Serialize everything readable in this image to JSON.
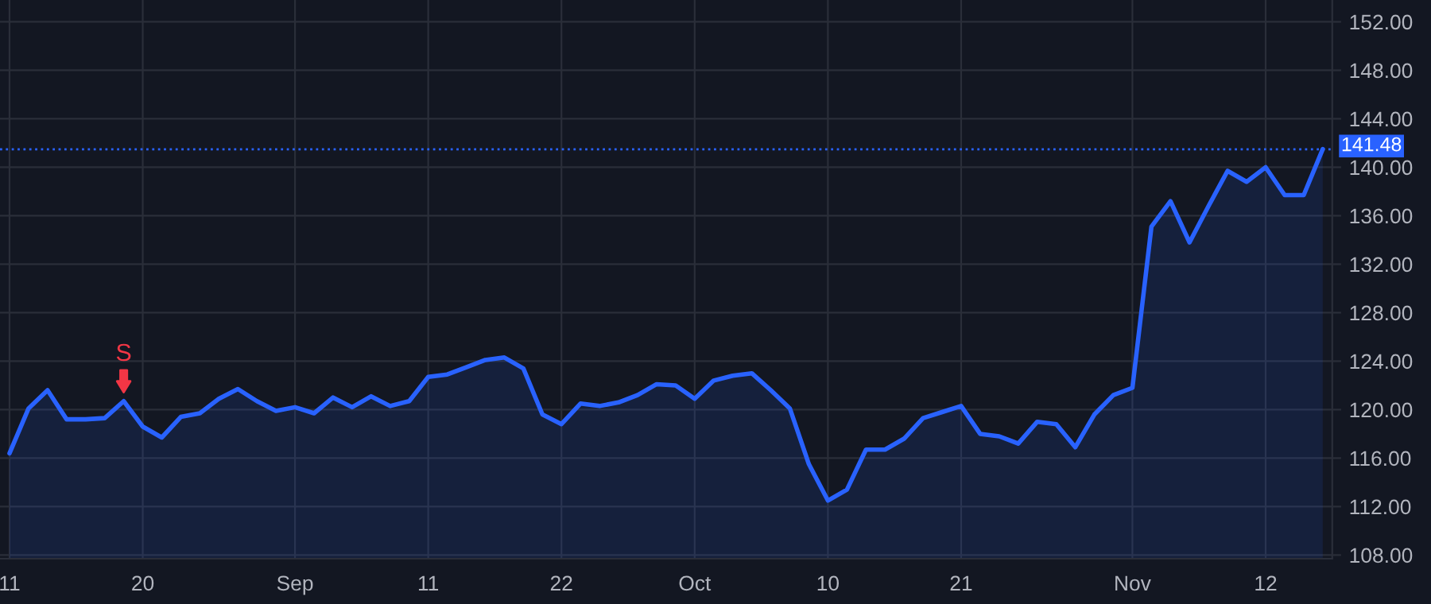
{
  "chart_data": {
    "type": "area",
    "categories": [
      "11",
      null,
      null,
      null,
      null,
      null,
      null,
      "20",
      null,
      null,
      null,
      null,
      null,
      null,
      null,
      "Sep",
      null,
      null,
      null,
      null,
      null,
      null,
      "11",
      null,
      null,
      null,
      null,
      null,
      null,
      "22",
      null,
      null,
      null,
      null,
      null,
      null,
      "Oct",
      null,
      null,
      null,
      null,
      null,
      null,
      "10",
      null,
      null,
      null,
      null,
      null,
      null,
      "21",
      null,
      null,
      null,
      null,
      null,
      null,
      null,
      null,
      "Nov",
      null,
      null,
      null,
      null,
      null,
      null,
      "12",
      null,
      null,
      null
    ],
    "series": [
      {
        "color": "#2962ff",
        "values": [
          116.4,
          120.1,
          121.6,
          119.2,
          119.2,
          119.3,
          120.7,
          118.6,
          117.7,
          119.4,
          119.7,
          120.9,
          121.7,
          120.7,
          119.9,
          120.2,
          119.7,
          121.0,
          120.2,
          121.1,
          120.3,
          120.7,
          122.7,
          122.9,
          123.5,
          124.1,
          124.3,
          123.4,
          119.6,
          118.8,
          120.5,
          120.3,
          120.6,
          121.2,
          122.1,
          122.0,
          120.9,
          122.4,
          122.8,
          123.0,
          121.6,
          120.1,
          115.5,
          112.5,
          113.4,
          116.7,
          116.7,
          117.6,
          119.3,
          119.8,
          120.3,
          118.0,
          117.8,
          117.2,
          119.0,
          118.8,
          116.9,
          119.6,
          121.2,
          121.8,
          135.1,
          137.2,
          133.8,
          136.8,
          139.7,
          138.8,
          140.0,
          137.7,
          137.7,
          141.5
        ]
      }
    ],
    "ylim": [
      107.7,
      153.8
    ],
    "yticks": [
      {
        "value": 108,
        "label": "108.00"
      },
      {
        "value": 112,
        "label": "112.00"
      },
      {
        "value": 116,
        "label": "116.00"
      },
      {
        "value": 120,
        "label": "120.00"
      },
      {
        "value": 124,
        "label": "124.00"
      },
      {
        "value": 128,
        "label": "128.00"
      },
      {
        "value": 132,
        "label": "132.00"
      },
      {
        "value": 136,
        "label": "136.00"
      },
      {
        "value": 140,
        "label": "140.00"
      },
      {
        "value": 144,
        "label": "144.00"
      },
      {
        "value": 148,
        "label": "148.00"
      },
      {
        "value": 152,
        "label": "152.00"
      }
    ],
    "ref_lines": [
      {
        "axis": "y",
        "value": 141.48,
        "label": "141.48",
        "color": "#2962ff",
        "line_style": "dotted"
      }
    ],
    "annotations": [
      {
        "text": "S",
        "y": 120.7
      }
    ],
    "grid": true
  }
}
